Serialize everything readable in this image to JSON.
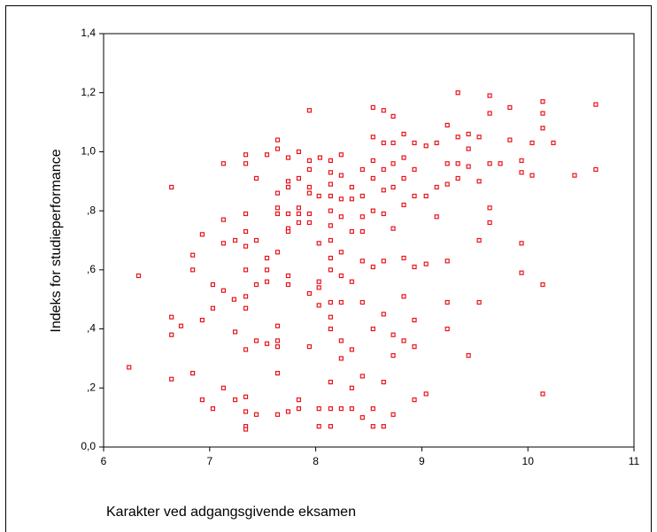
{
  "chart_data": {
    "type": "scatter",
    "x_label": "Karakter ved adgangsgivende eksamen",
    "y_label": "Indeks for studieperformance",
    "color": "#e8141b",
    "xlim": [
      6,
      11
    ],
    "xticks": [
      6,
      7,
      8,
      9,
      10,
      11
    ],
    "ylim": [
      0,
      1.4
    ],
    "yticks": [
      {
        "value": 0,
        "label": "0,0"
      },
      {
        "value": 0.2,
        "label": ",2"
      },
      {
        "value": 0.4,
        "label": ",4"
      },
      {
        "value": 0.6,
        "label": ",6"
      },
      {
        "value": 0.8,
        "label": ",8"
      },
      {
        "value": 1.0,
        "label": "1,0"
      },
      {
        "value": 1.2,
        "label": "1,2"
      },
      {
        "value": 1.4,
        "label": "1,4"
      }
    ],
    "x": [
      6.24,
      6.33,
      6.64,
      6.64,
      6.64,
      6.64,
      6.73,
      6.84,
      6.84,
      6.84,
      6.93,
      6.93,
      6.93,
      7.03,
      7.03,
      7.03,
      7.13,
      7.13,
      7.13,
      7.13,
      7.13,
      7.23,
      7.24,
      7.24,
      7.24,
      7.34,
      7.34,
      7.34,
      7.34,
      7.34,
      7.34,
      7.34,
      7.34,
      7.34,
      7.34,
      7.34,
      7.34,
      7.34,
      7.44,
      7.44,
      7.44,
      7.44,
      7.44,
      7.54,
      7.54,
      7.54,
      7.54,
      7.54,
      7.64,
      7.64,
      7.64,
      7.64,
      7.64,
      7.64,
      7.64,
      7.64,
      7.64,
      7.64,
      7.64,
      7.74,
      7.74,
      7.74,
      7.74,
      7.74,
      7.74,
      7.74,
      7.74,
      7.74,
      7.84,
      7.84,
      7.84,
      7.84,
      7.84,
      7.84,
      7.84,
      7.94,
      7.94,
      7.94,
      7.94,
      7.94,
      7.94,
      7.94,
      7.94,
      7.94,
      8.04,
      8.03,
      8.03,
      8.03,
      8.03,
      8.03,
      8.03,
      8.03,
      8.14,
      8.14,
      8.14,
      8.14,
      8.14,
      8.14,
      8.14,
      8.14,
      8.14,
      8.14,
      8.14,
      8.14,
      8.14,
      8.14,
      8.14,
      8.24,
      8.24,
      8.24,
      8.24,
      8.24,
      8.24,
      8.24,
      8.24,
      8.24,
      8.24,
      8.34,
      8.34,
      8.34,
      8.34,
      8.34,
      8.34,
      8.34,
      8.44,
      8.44,
      8.44,
      8.44,
      8.44,
      8.44,
      8.44,
      8.44,
      8.54,
      8.54,
      8.54,
      8.54,
      8.54,
      8.54,
      8.54,
      8.54,
      8.54,
      8.64,
      8.64,
      8.64,
      8.64,
      8.64,
      8.64,
      8.64,
      8.64,
      8.64,
      8.73,
      8.73,
      8.73,
      8.73,
      8.73,
      8.73,
      8.73,
      8.73,
      8.83,
      8.83,
      8.83,
      8.83,
      8.83,
      8.83,
      8.83,
      8.93,
      8.93,
      8.93,
      8.93,
      8.93,
      8.93,
      8.93,
      9.04,
      9.04,
      9.04,
      9.04,
      9.14,
      9.14,
      9.14,
      9.24,
      9.24,
      9.24,
      9.24,
      9.24,
      9.24,
      9.34,
      9.34,
      9.34,
      9.34,
      9.44,
      9.44,
      9.44,
      9.44,
      9.54,
      9.54,
      9.54,
      9.54,
      9.64,
      9.64,
      9.64,
      9.64,
      9.64,
      9.74,
      9.83,
      9.83,
      9.94,
      9.94,
      9.94,
      9.94,
      10.04,
      10.04,
      10.14,
      10.14,
      10.14,
      10.14,
      10.14,
      10.24,
      10.44,
      10.64,
      10.64
    ],
    "values": [
      0.27,
      0.58,
      0.88,
      0.44,
      0.38,
      0.23,
      0.41,
      0.65,
      0.6,
      0.25,
      0.72,
      0.43,
      0.16,
      0.55,
      0.47,
      0.13,
      0.96,
      0.77,
      0.69,
      0.53,
      0.2,
      0.5,
      0.7,
      0.39,
      0.16,
      0.99,
      0.96,
      0.79,
      0.73,
      0.68,
      0.6,
      0.51,
      0.47,
      0.33,
      0.17,
      0.12,
      0.07,
      0.06,
      0.91,
      0.7,
      0.55,
      0.36,
      0.11,
      0.99,
      0.64,
      0.6,
      0.56,
      0.35,
      1.04,
      1.01,
      0.86,
      0.81,
      0.79,
      0.66,
      0.41,
      0.36,
      0.34,
      0.25,
      0.11,
      0.98,
      0.9,
      0.88,
      0.79,
      0.74,
      0.73,
      0.58,
      0.55,
      0.12,
      1.0,
      0.91,
      0.81,
      0.79,
      0.76,
      0.16,
      0.13,
      1.14,
      0.97,
      0.94,
      0.88,
      0.86,
      0.79,
      0.76,
      0.52,
      0.34,
      0.98,
      0.85,
      0.69,
      0.56,
      0.54,
      0.48,
      0.13,
      0.07,
      0.97,
      0.93,
      0.89,
      0.85,
      0.8,
      0.75,
      0.7,
      0.64,
      0.6,
      0.49,
      0.44,
      0.4,
      0.22,
      0.13,
      0.07,
      0.99,
      0.92,
      0.84,
      0.78,
      0.66,
      0.58,
      0.49,
      0.36,
      0.3,
      0.13,
      0.88,
      0.84,
      0.73,
      0.56,
      0.33,
      0.2,
      0.13,
      0.94,
      0.85,
      0.78,
      0.73,
      0.63,
      0.49,
      0.24,
      0.1,
      0.97,
      1.15,
      1.05,
      0.91,
      0.8,
      0.61,
      0.4,
      0.13,
      0.07,
      1.14,
      1.03,
      0.94,
      0.87,
      0.79,
      0.63,
      0.45,
      0.22,
      0.07,
      1.12,
      1.03,
      0.96,
      0.88,
      0.74,
      0.38,
      0.31,
      0.11,
      1.06,
      0.98,
      0.91,
      0.82,
      0.64,
      0.51,
      0.36,
      1.03,
      0.94,
      0.85,
      0.61,
      0.43,
      0.34,
      0.16,
      1.02,
      0.85,
      0.62,
      0.18,
      1.03,
      0.88,
      0.78,
      1.09,
      0.96,
      0.89,
      0.63,
      0.49,
      0.4,
      1.2,
      1.05,
      0.96,
      0.91,
      1.06,
      1.01,
      0.95,
      0.31,
      1.05,
      0.9,
      0.7,
      0.49,
      1.19,
      1.13,
      0.96,
      0.81,
      0.76,
      0.96,
      1.15,
      1.04,
      0.97,
      0.93,
      0.69,
      0.59,
      1.03,
      0.92,
      1.17,
      1.13,
      1.08,
      0.55,
      0.18,
      1.03,
      0.92,
      1.16,
      0.94
    ]
  }
}
